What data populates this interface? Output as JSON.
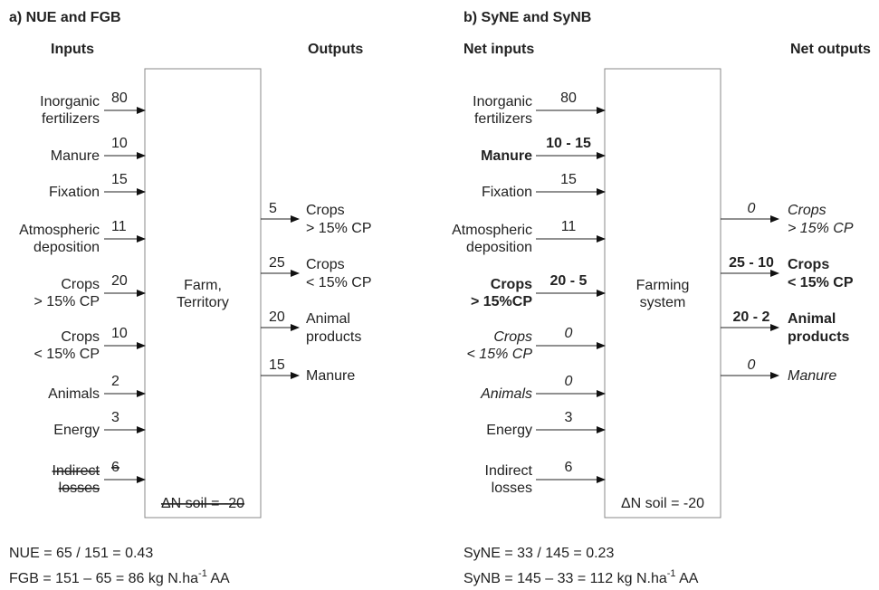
{
  "panels": [
    {
      "title": "a) NUE and FGB",
      "inputs_header": "Inputs",
      "outputs_header": "Outputs",
      "box_label": [
        "Farm,",
        "Territory"
      ],
      "soil": "ΔN soil = -20",
      "soil_style": "strike",
      "inputs": [
        {
          "label": [
            "Inorganic",
            "fertilizers"
          ],
          "value": 80
        },
        {
          "label": [
            "Manure"
          ],
          "value": 10
        },
        {
          "label": [
            "Fixation"
          ],
          "value": 15
        },
        {
          "label": [
            "Atmospheric",
            "deposition"
          ],
          "value": 11
        },
        {
          "label": [
            "Crops",
            "> 15% CP"
          ],
          "value": 20
        },
        {
          "label": [
            "Crops",
            "< 15% CP"
          ],
          "value": 10
        },
        {
          "label": [
            "Animals"
          ],
          "value": 2
        },
        {
          "label": [
            "Energy"
          ],
          "value": 3
        },
        {
          "label": [
            "Indirect",
            "losses"
          ],
          "value": 6,
          "style": "strike"
        }
      ],
      "outputs": [
        {
          "label": [
            "Crops",
            "> 15% CP"
          ],
          "value": 5
        },
        {
          "label": [
            "Crops",
            "< 15% CP"
          ],
          "value": 25
        },
        {
          "label": [
            "Animal",
            "products"
          ],
          "value": 20
        },
        {
          "label": [
            "Manure"
          ],
          "value": 15
        }
      ],
      "formulas": [
        {
          "text": "NUE = 65 / 151 = 0.43"
        },
        {
          "text": "FGB = 151 – 65 = 86 kg N.ha",
          "sup": "-1",
          "tail": " AA"
        }
      ]
    },
    {
      "title": "b) SyNE and SyNB",
      "inputs_header": "Net inputs",
      "outputs_header": "Net outputs",
      "box_label": [
        "Farming",
        "system"
      ],
      "soil": "ΔN soil = -20",
      "inputs": [
        {
          "label": [
            "Inorganic",
            "fertilizers"
          ],
          "value": 80
        },
        {
          "label": [
            "Manure"
          ],
          "value": "10 - 15",
          "style": "bold"
        },
        {
          "label": [
            "Fixation"
          ],
          "value": 15
        },
        {
          "label": [
            "Atmospheric",
            "deposition"
          ],
          "value": 11
        },
        {
          "label": [
            "Crops",
            "> 15%CP"
          ],
          "value": "20 - 5",
          "style": "bold"
        },
        {
          "label": [
            "Crops",
            "< 15% CP"
          ],
          "value": 0,
          "style": "italic"
        },
        {
          "label": [
            "Animals"
          ],
          "value": 0,
          "style": "italic"
        },
        {
          "label": [
            "Energy"
          ],
          "value": 3
        },
        {
          "label": [
            "Indirect",
            "losses"
          ],
          "value": 6
        }
      ],
      "outputs": [
        {
          "label": [
            "Crops",
            "> 15% CP"
          ],
          "value": 0,
          "style": "italic"
        },
        {
          "label": [
            "Crops",
            "< 15% CP"
          ],
          "value": "25 - 10",
          "style": "bold"
        },
        {
          "label": [
            "Animal",
            "products"
          ],
          "value": "20 - 2",
          "style": "bold"
        },
        {
          "label": [
            "Manure"
          ],
          "value": 0,
          "style": "italic"
        }
      ],
      "formulas": [
        {
          "text": "SyNE = 33 / 145 = 0.23"
        },
        {
          "text": "SyNB = 145 – 33 = 112 kg N.ha",
          "sup": "-1",
          "tail": " AA"
        }
      ]
    }
  ]
}
